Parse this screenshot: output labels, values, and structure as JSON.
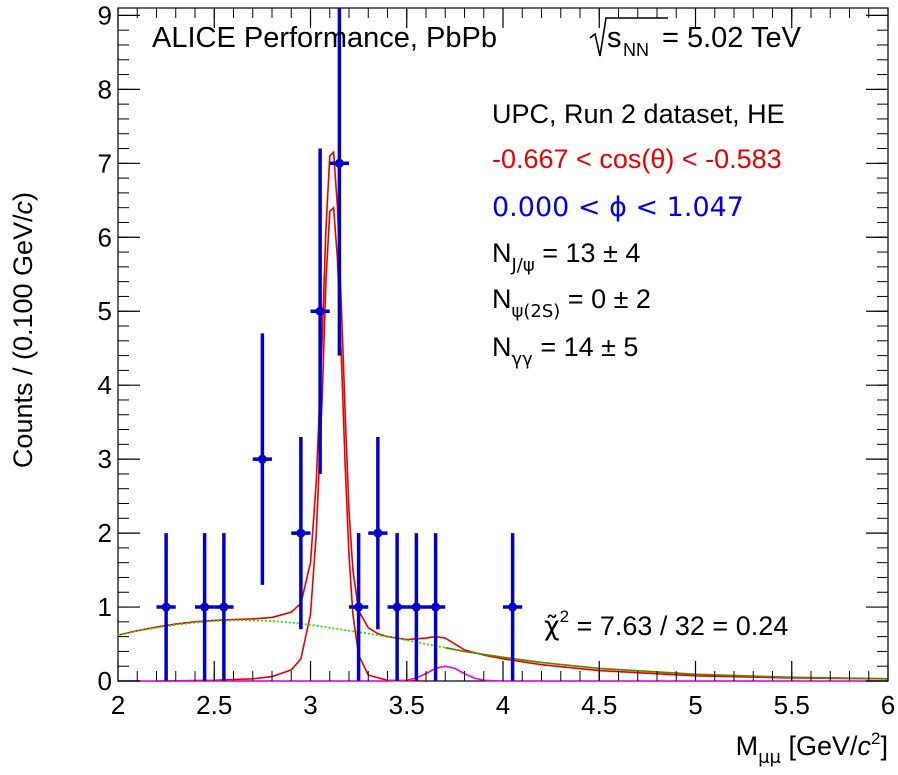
{
  "chart_data": {
    "type": "scatter",
    "xlabel": {
      "main": "M",
      "sub": "μμ",
      "unit_open": " [GeV/",
      "unit_c": "c",
      "unit_sup": "2",
      "unit_close": "]"
    },
    "ylabel": {
      "prefix": "Counts / (0.100 GeV/",
      "italic": "c",
      "suffix": ")"
    },
    "xlim": [
      2,
      6
    ],
    "ylim": [
      0,
      9.1
    ],
    "xticks": [
      2,
      2.5,
      3,
      3.5,
      4,
      4.5,
      5,
      5.5,
      6
    ],
    "xtick_labels": [
      "2",
      "2.5",
      "3",
      "3.5",
      "4",
      "4.5",
      "5",
      "5.5",
      "6"
    ],
    "yticks": [
      0,
      1,
      2,
      3,
      4,
      5,
      6,
      7,
      8,
      9
    ],
    "ytick_labels": [
      "0",
      "1",
      "2",
      "3",
      "4",
      "5",
      "6",
      "7",
      "8",
      "9"
    ],
    "grid": false,
    "data_points": {
      "x": [
        2.25,
        2.45,
        2.55,
        2.75,
        2.95,
        3.05,
        3.15,
        3.25,
        3.35,
        3.45,
        3.55,
        3.65,
        4.05
      ],
      "y": [
        1,
        1,
        1,
        3,
        2,
        5,
        7,
        1,
        2,
        1,
        1,
        1,
        1
      ],
      "yerr_low": [
        1,
        1,
        1,
        1.7,
        1.3,
        2.2,
        2.6,
        1,
        1.3,
        1,
        1,
        1,
        1
      ],
      "yerr_high": [
        1,
        1,
        1,
        1.7,
        1.3,
        2.2,
        2.6,
        1,
        1.3,
        1,
        1,
        1,
        1
      ],
      "xerr": 0.05
    },
    "curves": [
      {
        "role": "total",
        "color": "#e60000",
        "x": [
          2.0,
          2.1,
          2.2,
          2.3,
          2.4,
          2.5,
          2.6,
          2.7,
          2.8,
          2.9,
          2.95,
          3.0,
          3.03,
          3.06,
          3.08,
          3.1,
          3.12,
          3.14,
          3.16,
          3.18,
          3.2,
          3.22,
          3.25,
          3.3,
          3.35,
          3.4,
          3.5,
          3.6,
          3.65,
          3.7,
          3.75,
          3.8,
          3.9,
          4.0,
          4.2,
          4.5,
          5.0,
          5.5,
          6.0
        ],
        "y": [
          0.62,
          0.68,
          0.73,
          0.77,
          0.8,
          0.82,
          0.83,
          0.84,
          0.86,
          0.93,
          1.05,
          1.6,
          2.7,
          4.6,
          6.1,
          7.1,
          7.15,
          6.4,
          5.1,
          3.6,
          2.3,
          1.5,
          0.95,
          0.72,
          0.64,
          0.6,
          0.56,
          0.58,
          0.6,
          0.58,
          0.5,
          0.42,
          0.35,
          0.3,
          0.22,
          0.14,
          0.07,
          0.04,
          0.03
        ]
      },
      {
        "role": "J/psi",
        "color": "#e60000",
        "x": [
          2.2,
          2.5,
          2.7,
          2.8,
          2.9,
          2.95,
          3.0,
          3.03,
          3.06,
          3.08,
          3.1,
          3.12,
          3.14,
          3.16,
          3.18,
          3.2,
          3.22,
          3.25,
          3.3,
          3.4,
          3.6
        ],
        "y": [
          0.0,
          0.01,
          0.03,
          0.06,
          0.15,
          0.3,
          0.9,
          2.0,
          3.8,
          5.4,
          6.35,
          6.4,
          5.7,
          4.4,
          2.9,
          1.7,
          0.9,
          0.35,
          0.08,
          0.01,
          0.0
        ]
      },
      {
        "role": "psi(2S)",
        "color": "#ee00ee",
        "x": [
          2.0,
          3.4,
          3.5,
          3.55,
          3.6,
          3.65,
          3.7,
          3.75,
          3.8,
          3.85,
          3.9,
          4.0,
          6.0
        ],
        "y": [
          0.0,
          0.0,
          0.01,
          0.04,
          0.1,
          0.17,
          0.2,
          0.17,
          0.1,
          0.04,
          0.01,
          0.0,
          0.0
        ]
      },
      {
        "role": "gamma-gamma",
        "color": "#33dd00",
        "style": "dotted",
        "x": [
          2.0,
          2.1,
          2.2,
          2.3,
          2.4,
          2.5,
          2.6,
          2.7,
          2.8,
          2.9,
          3.0,
          3.1,
          3.2,
          3.3,
          3.4,
          3.5,
          3.6,
          3.7,
          3.8,
          3.9,
          4.0,
          4.2,
          4.5,
          5.0,
          5.5,
          6.0
        ],
        "y": [
          0.62,
          0.68,
          0.72,
          0.76,
          0.79,
          0.81,
          0.82,
          0.82,
          0.81,
          0.79,
          0.76,
          0.72,
          0.68,
          0.64,
          0.6,
          0.55,
          0.5,
          0.45,
          0.4,
          0.36,
          0.32,
          0.25,
          0.17,
          0.09,
          0.05,
          0.03
        ]
      },
      {
        "role": "total-overlay",
        "color": "#6b7a00",
        "x": [
          3.7,
          3.8,
          3.9,
          4.0,
          4.2,
          4.5,
          5.0,
          5.5,
          6.0
        ],
        "y": [
          0.45,
          0.4,
          0.36,
          0.32,
          0.25,
          0.17,
          0.09,
          0.05,
          0.03
        ]
      }
    ],
    "annotations": {
      "title_prefix": "ALICE Performance, PbPb ",
      "title_s": "s",
      "title_sub": "NN",
      "title_suffix": " = 5.02 TeV",
      "dataset": "UPC, Run 2 dataset, HE",
      "cos_range": "-0.667 < cos(θ) < -0.583",
      "phi_range": "0.000 < ϕ < 1.047",
      "yields": [
        {
          "sym": "N",
          "sub": "J/ψ",
          "val": " = 13 ± 4"
        },
        {
          "sym": "N",
          "sub": "ψ(2S)",
          "val": " = 0 ± 2"
        },
        {
          "sym": "N",
          "sub": "γγ",
          "val": " = 14 ± 5"
        }
      ],
      "chi2_symbol": "χ̃",
      "chi2_sup": "2",
      "chi2_value": " = 7.63 / 32 = 0.24"
    },
    "colors": {
      "data": "#0000cc",
      "cos_text": "#e60000",
      "phi_text": "#0000ee",
      "axis": "#000000"
    }
  }
}
